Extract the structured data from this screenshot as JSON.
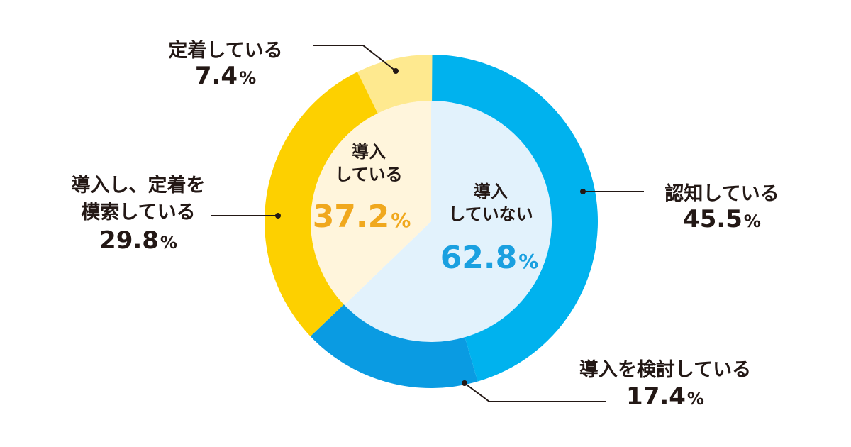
{
  "chart_data": {
    "type": "pie",
    "subtype": "nested-donut",
    "inner": [
      {
        "label": [
          "導入",
          "していない"
        ],
        "value": 62.8,
        "unit": "%",
        "color": "#e2f2fc",
        "text_color": "#1aa0e0"
      },
      {
        "label": [
          "導入",
          "している"
        ],
        "value": 37.2,
        "unit": "%",
        "color": "#fff5dc",
        "text_color": "#f0a81e"
      }
    ],
    "outer": [
      {
        "label": [
          "認知している"
        ],
        "value": 45.5,
        "unit": "%",
        "color": "#00b2ee"
      },
      {
        "label": [
          "導入を検討している"
        ],
        "value": 17.4,
        "unit": "%",
        "color": "#0a9be2"
      },
      {
        "label": [
          "導入し、定着を",
          "模索している"
        ],
        "value": 29.8,
        "unit": "%",
        "color": "#fdd000"
      },
      {
        "label": [
          "定着している"
        ],
        "value": 7.4,
        "unit": "%",
        "color": "#fee98f"
      }
    ],
    "start": "12 o'clock",
    "direction": "clockwise"
  }
}
